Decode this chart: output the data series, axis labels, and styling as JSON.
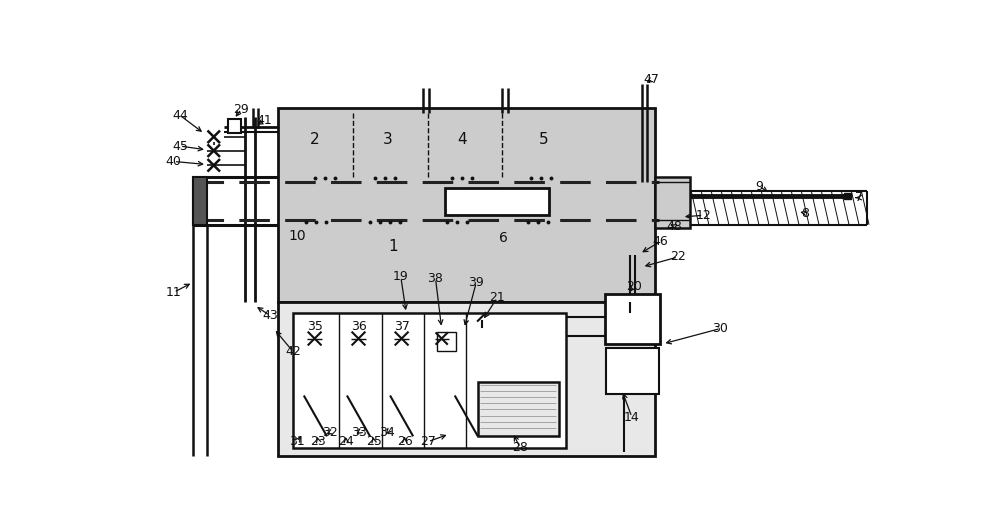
{
  "bg": "#ffffff",
  "lc": "#111111",
  "gray_furnace": "#cccccc",
  "gray_ctrl": "#e8e8e8",
  "fig_w": 10.0,
  "fig_h": 5.24,
  "dpi": 100
}
